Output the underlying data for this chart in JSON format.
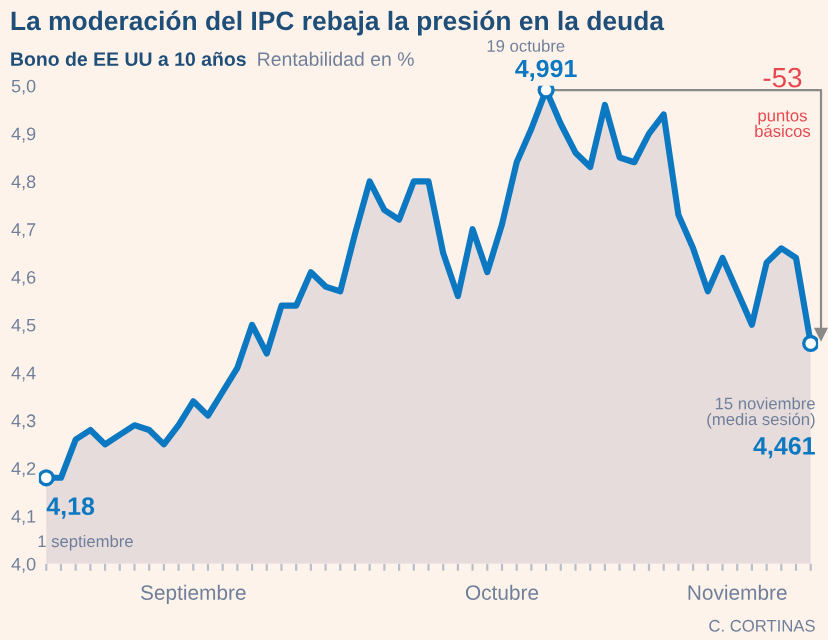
{
  "chart_data": {
    "type": "area",
    "title": "La moderación del IPC rebaja la presión en la deuda",
    "subtitle": "Bono de EE UU a 10 años",
    "ylabel": "Rentabilidad en %",
    "categories": [
      null,
      null,
      null,
      null,
      null,
      null,
      null,
      null,
      null,
      null,
      "Septiembre",
      null,
      null,
      null,
      null,
      null,
      null,
      null,
      null,
      null,
      null,
      null,
      null,
      null,
      null,
      null,
      null,
      null,
      null,
      null,
      null,
      "Octubre",
      null,
      null,
      null,
      null,
      null,
      null,
      null,
      null,
      null,
      null,
      null,
      null,
      null,
      null,
      null,
      "Noviembre",
      null,
      null,
      null,
      null,
      null
    ],
    "series": [
      {
        "color": "#0b78c1",
        "values": [
          4.18,
          4.18,
          4.26,
          4.28,
          4.25,
          4.27,
          4.29,
          4.28,
          4.25,
          4.29,
          4.34,
          4.31,
          4.36,
          4.41,
          4.5,
          4.44,
          4.54,
          4.54,
          4.61,
          4.58,
          4.57,
          4.69,
          4.8,
          4.74,
          4.72,
          4.8,
          4.8,
          4.65,
          4.56,
          4.7,
          4.61,
          4.71,
          4.84,
          4.91,
          4.991,
          4.92,
          4.86,
          4.83,
          4.96,
          4.85,
          4.84,
          4.9,
          4.94,
          4.73,
          4.66,
          4.57,
          4.64,
          4.57,
          4.5,
          4.63,
          4.66,
          4.64,
          4.461
        ]
      }
    ],
    "ylim": [
      4.0,
      5.0
    ],
    "yticks": [
      {
        "value": 4.0,
        "label": "4,0"
      },
      {
        "value": 4.1,
        "label": "4,1"
      },
      {
        "value": 4.2,
        "label": "4,2"
      },
      {
        "value": 4.3,
        "label": "4,3"
      },
      {
        "value": 4.4,
        "label": "4,4"
      },
      {
        "value": 4.5,
        "label": "4,5"
      },
      {
        "value": 4.6,
        "label": "4,6"
      },
      {
        "value": 4.7,
        "label": "4,7"
      },
      {
        "value": 4.8,
        "label": "4,8"
      },
      {
        "value": 4.9,
        "label": "4,9"
      },
      {
        "value": 5.0,
        "label": "5,0"
      }
    ],
    "annotations": [
      {
        "text": "4,18",
        "y": 4.18
      },
      "1 septiembre",
      "19 octubre",
      {
        "text": "4,991",
        "y": 4.991
      },
      "-53",
      "puntos\nbásicos",
      "15 noviembre\n(media sesión)",
      "4,461",
      "C. CORTINAS"
    ],
    "grid": false,
    "legend": false,
    "marker": "none",
    "line_style": "solid"
  }
}
